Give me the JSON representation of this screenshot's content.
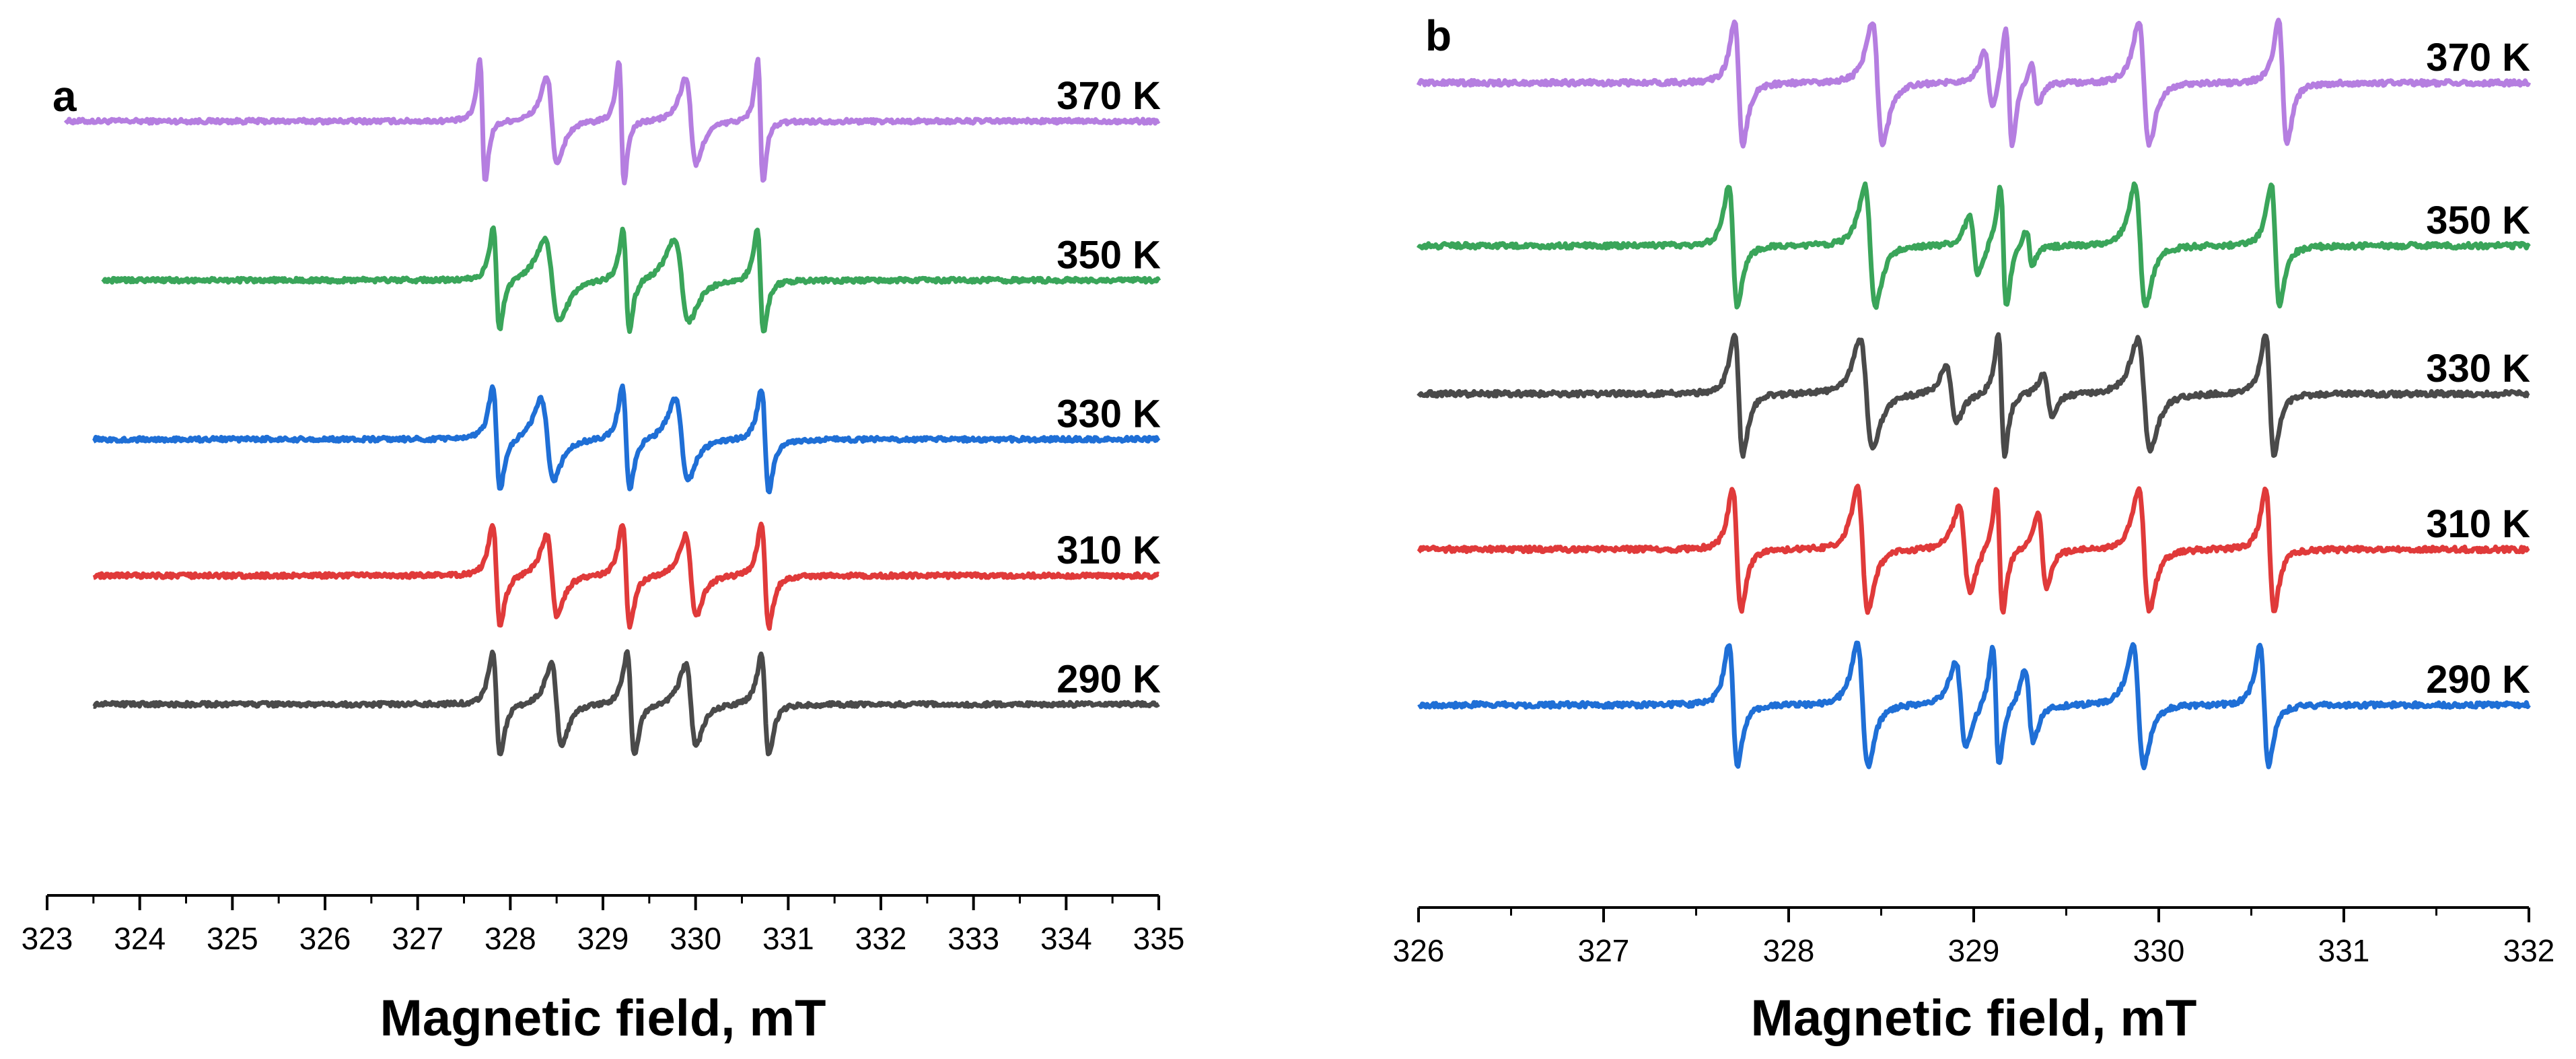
{
  "chart_data": [
    {
      "type": "line",
      "panel_label": "a",
      "title": "",
      "xlabel": "Magnetic field, mT",
      "ylabel": "",
      "xlim": [
        323,
        335
      ],
      "x_ticks": [
        "323",
        "324",
        "325",
        "326",
        "327",
        "328",
        "329",
        "330",
        "331",
        "332",
        "333",
        "334",
        "335"
      ],
      "grid": false,
      "series": [
        {
          "name": "370 K",
          "color": "#b57ee0",
          "baseline": 4.2,
          "x_start": 323.2,
          "x_end": 335,
          "lines": [
            {
              "x": 327.7,
              "a": 1.2,
              "w": 0.05
            },
            {
              "x": 328.45,
              "a": 0.85,
              "w": 0.1
            },
            {
              "x": 329.2,
              "a": 1.2,
              "w": 0.05
            },
            {
              "x": 329.95,
              "a": 0.85,
              "w": 0.1
            },
            {
              "x": 330.7,
              "a": 1.2,
              "w": 0.05
            }
          ]
        },
        {
          "name": "350 K",
          "color": "#3aa55a",
          "baseline": 3.15,
          "x_start": 323.6,
          "x_end": 335,
          "lines": [
            {
              "x": 327.85,
              "a": 1.0,
              "w": 0.06
            },
            {
              "x": 328.45,
              "a": 0.8,
              "w": 0.14
            },
            {
              "x": 329.25,
              "a": 1.0,
              "w": 0.06
            },
            {
              "x": 329.85,
              "a": 0.8,
              "w": 0.14
            },
            {
              "x": 330.7,
              "a": 1.0,
              "w": 0.06
            }
          ]
        },
        {
          "name": "330 K",
          "color": "#1f6fd6",
          "baseline": 2.1,
          "x_start": 323.5,
          "x_end": 335,
          "lines": [
            {
              "x": 327.85,
              "a": 1.0,
              "w": 0.07
            },
            {
              "x": 328.4,
              "a": 0.8,
              "w": 0.12
            },
            {
              "x": 329.25,
              "a": 1.0,
              "w": 0.07
            },
            {
              "x": 329.85,
              "a": 0.8,
              "w": 0.12
            },
            {
              "x": 330.75,
              "a": 1.0,
              "w": 0.07
            }
          ]
        },
        {
          "name": "310 K",
          "color": "#e03a3a",
          "baseline": 1.2,
          "x_start": 323.5,
          "x_end": 335,
          "lines": [
            {
              "x": 327.85,
              "a": 1.0,
              "w": 0.07
            },
            {
              "x": 328.45,
              "a": 0.8,
              "w": 0.1
            },
            {
              "x": 329.25,
              "a": 1.0,
              "w": 0.07
            },
            {
              "x": 329.95,
              "a": 0.8,
              "w": 0.1
            },
            {
              "x": 330.75,
              "a": 1.0,
              "w": 0.07
            }
          ]
        },
        {
          "name": "290 K",
          "color": "#4a4a4a",
          "baseline": 0.35,
          "x_start": 323.5,
          "x_end": 335,
          "lines": [
            {
              "x": 327.85,
              "a": 1.0,
              "w": 0.07
            },
            {
              "x": 328.5,
              "a": 0.8,
              "w": 0.1
            },
            {
              "x": 329.3,
              "a": 1.0,
              "w": 0.07
            },
            {
              "x": 329.95,
              "a": 0.8,
              "w": 0.1
            },
            {
              "x": 330.75,
              "a": 1.0,
              "w": 0.07
            }
          ]
        }
      ]
    },
    {
      "type": "line",
      "panel_label": "b",
      "title": "",
      "xlabel": "Magnetic field, mT",
      "ylabel": "",
      "xlim": [
        326,
        332
      ],
      "x_ticks": [
        "326",
        "327",
        "328",
        "329",
        "330",
        "331",
        "332"
      ],
      "grid": false,
      "series": [
        {
          "name": "370 K",
          "color": "#b57ee0",
          "baseline": 4.6,
          "x_start": 326,
          "x_end": 332,
          "lines": [
            {
              "x": 327.73,
              "a": 1.0,
              "w": 0.04
            },
            {
              "x": 328.48,
              "a": 1.0,
              "w": 0.05
            },
            {
              "x": 329.08,
              "a": 0.5,
              "w": 0.04
            },
            {
              "x": 329.19,
              "a": 1.0,
              "w": 0.03
            },
            {
              "x": 329.33,
              "a": 0.35,
              "w": 0.03
            },
            {
              "x": 329.92,
              "a": 1.0,
              "w": 0.05
            },
            {
              "x": 330.67,
              "a": 1.0,
              "w": 0.04
            }
          ]
        },
        {
          "name": "350 K",
          "color": "#3aa55a",
          "baseline": 3.5,
          "x_start": 326,
          "x_end": 332,
          "lines": [
            {
              "x": 327.7,
              "a": 1.0,
              "w": 0.04
            },
            {
              "x": 328.44,
              "a": 1.0,
              "w": 0.05
            },
            {
              "x": 329.0,
              "a": 0.5,
              "w": 0.04
            },
            {
              "x": 329.16,
              "a": 1.0,
              "w": 0.03
            },
            {
              "x": 329.3,
              "a": 0.3,
              "w": 0.03
            },
            {
              "x": 329.9,
              "a": 1.0,
              "w": 0.05
            },
            {
              "x": 330.63,
              "a": 1.0,
              "w": 0.04
            }
          ]
        },
        {
          "name": "330 K",
          "color": "#4a4a4a",
          "baseline": 2.5,
          "x_start": 326,
          "x_end": 332,
          "lines": [
            {
              "x": 327.73,
              "a": 1.0,
              "w": 0.04
            },
            {
              "x": 328.42,
              "a": 0.9,
              "w": 0.06
            },
            {
              "x": 328.88,
              "a": 0.45,
              "w": 0.05
            },
            {
              "x": 329.15,
              "a": 1.0,
              "w": 0.03
            },
            {
              "x": 329.4,
              "a": 0.35,
              "w": 0.04
            },
            {
              "x": 329.92,
              "a": 0.9,
              "w": 0.06
            },
            {
              "x": 330.6,
              "a": 1.0,
              "w": 0.04
            }
          ]
        },
        {
          "name": "310 K",
          "color": "#e03a3a",
          "baseline": 1.45,
          "x_start": 326,
          "x_end": 332,
          "lines": [
            {
              "x": 327.72,
              "a": 1.0,
              "w": 0.04
            },
            {
              "x": 328.4,
              "a": 1.0,
              "w": 0.05
            },
            {
              "x": 328.95,
              "a": 0.7,
              "w": 0.05
            },
            {
              "x": 329.14,
              "a": 1.0,
              "w": 0.03
            },
            {
              "x": 329.37,
              "a": 0.6,
              "w": 0.04
            },
            {
              "x": 329.92,
              "a": 1.0,
              "w": 0.05
            },
            {
              "x": 330.6,
              "a": 1.0,
              "w": 0.04
            }
          ]
        },
        {
          "name": "290 K",
          "color": "#1f6fd6",
          "baseline": 0.4,
          "x_start": 326,
          "x_end": 332,
          "lines": [
            {
              "x": 327.7,
              "a": 1.0,
              "w": 0.04
            },
            {
              "x": 328.4,
              "a": 1.0,
              "w": 0.05
            },
            {
              "x": 328.93,
              "a": 0.7,
              "w": 0.05
            },
            {
              "x": 329.12,
              "a": 1.0,
              "w": 0.03
            },
            {
              "x": 329.3,
              "a": 0.6,
              "w": 0.04
            },
            {
              "x": 329.89,
              "a": 1.0,
              "w": 0.05
            },
            {
              "x": 330.57,
              "a": 1.0,
              "w": 0.04
            }
          ]
        }
      ]
    }
  ]
}
